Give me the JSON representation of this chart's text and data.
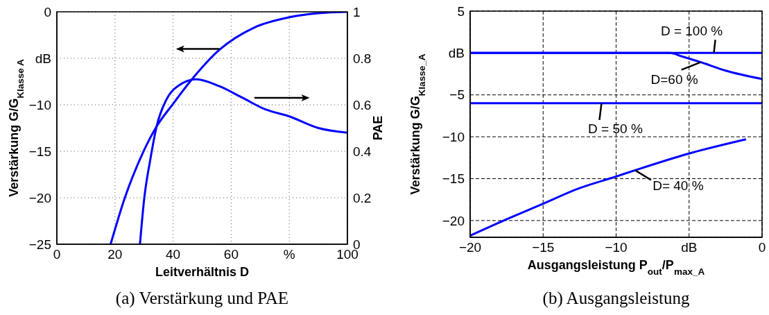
{
  "chart_data": [
    {
      "type": "line",
      "title": "(a) Verstärkung und PAE",
      "xlabel": "Leitverhältnis D",
      "ylabel": "Verstärkung G/G$_{Klasse A}$",
      "y2label": "PAE",
      "xlim": [
        0,
        100
      ],
      "xticks": [
        0,
        20,
        40,
        60,
        {
          "value": 80,
          "label": "%"
        },
        100
      ],
      "ylim": [
        -25,
        0
      ],
      "yticks": [
        -25,
        -20,
        -15,
        {
          "value": -10,
          "label": "−10"
        },
        {
          "value": -5,
          "label": "dB"
        },
        0
      ],
      "y2lim": [
        0,
        1
      ],
      "y2ticks": [
        0,
        0.2,
        0.4,
        0.6,
        0.8,
        1
      ],
      "grid": true,
      "series": [
        {
          "color": "#0000ff",
          "x": [
            18.5,
            23.3,
            29.7,
            34.4,
            40,
            46.4,
            55.9,
            67.9,
            79.8,
            90,
            100
          ],
          "values": [
            -25,
            -20.1,
            -15.1,
            -12.3,
            -9.9,
            -7.3,
            -4.1,
            -1.7,
            -0.6,
            -0.15,
            0
          ]
        },
        {
          "color": "#0000ff",
          "axis": "y2",
          "x": [
            28.6,
            30.1,
            32.1,
            34.4,
            37.6,
            41.6,
            48,
            55.9,
            63.9,
            71.8,
            80,
            90,
            100
          ],
          "values": [
            0,
            0.2,
            0.36,
            0.51,
            0.62,
            0.68,
            0.71,
            0.68,
            0.63,
            0.58,
            0.55,
            0.5,
            0.48
          ]
        }
      ]
    },
    {
      "type": "line",
      "title": "(b) Ausgangsleistung",
      "xlabel": "Ausgangsleistung P$_{out}$/P$_{max_A}$",
      "ylabel": "Verstärkung G/G$_{Klasse_A}$",
      "xlim": [
        -20,
        0
      ],
      "xticks": [
        -20,
        -15,
        -10,
        {
          "value": -5,
          "label": "dB"
        },
        0
      ],
      "ylim": [
        -22,
        5
      ],
      "yticks": [
        -20,
        -15,
        -10,
        -5,
        {
          "value": 0,
          "label": "dB"
        },
        5
      ],
      "grid": true,
      "series": [
        {
          "color": "#0000ff",
          "x": [
            -20,
            0
          ],
          "values": [
            0,
            0
          ]
        },
        {
          "color": "#0000ff",
          "x": [
            -20,
            -6.3,
            -5.5,
            -4.2,
            -2.5,
            0
          ],
          "values": [
            0,
            0,
            -0.4,
            -1.1,
            -2.1,
            -3.1
          ]
        },
        {
          "color": "#0000ff",
          "x": [
            -20,
            0
          ],
          "values": [
            -6,
            -6
          ]
        },
        {
          "color": "#0000ff",
          "x": [
            -20,
            -17.7,
            -15,
            -12.6,
            -10.1,
            -8.7,
            -5,
            -1.1
          ],
          "values": [
            -21.8,
            -20,
            -18,
            -16.2,
            -14.8,
            -14,
            -12,
            -10.3
          ]
        }
      ],
      "annotations": [
        {
          "text": "D = 100 %",
          "x": -3.3,
          "y": 0
        },
        {
          "text": "D=60 %",
          "x": -4.2,
          "y": -1.1
        },
        {
          "text": "D = 50 %",
          "x": -11,
          "y": -6
        },
        {
          "text": "D= 40 %",
          "x": -8.7,
          "y": -14
        }
      ]
    }
  ]
}
